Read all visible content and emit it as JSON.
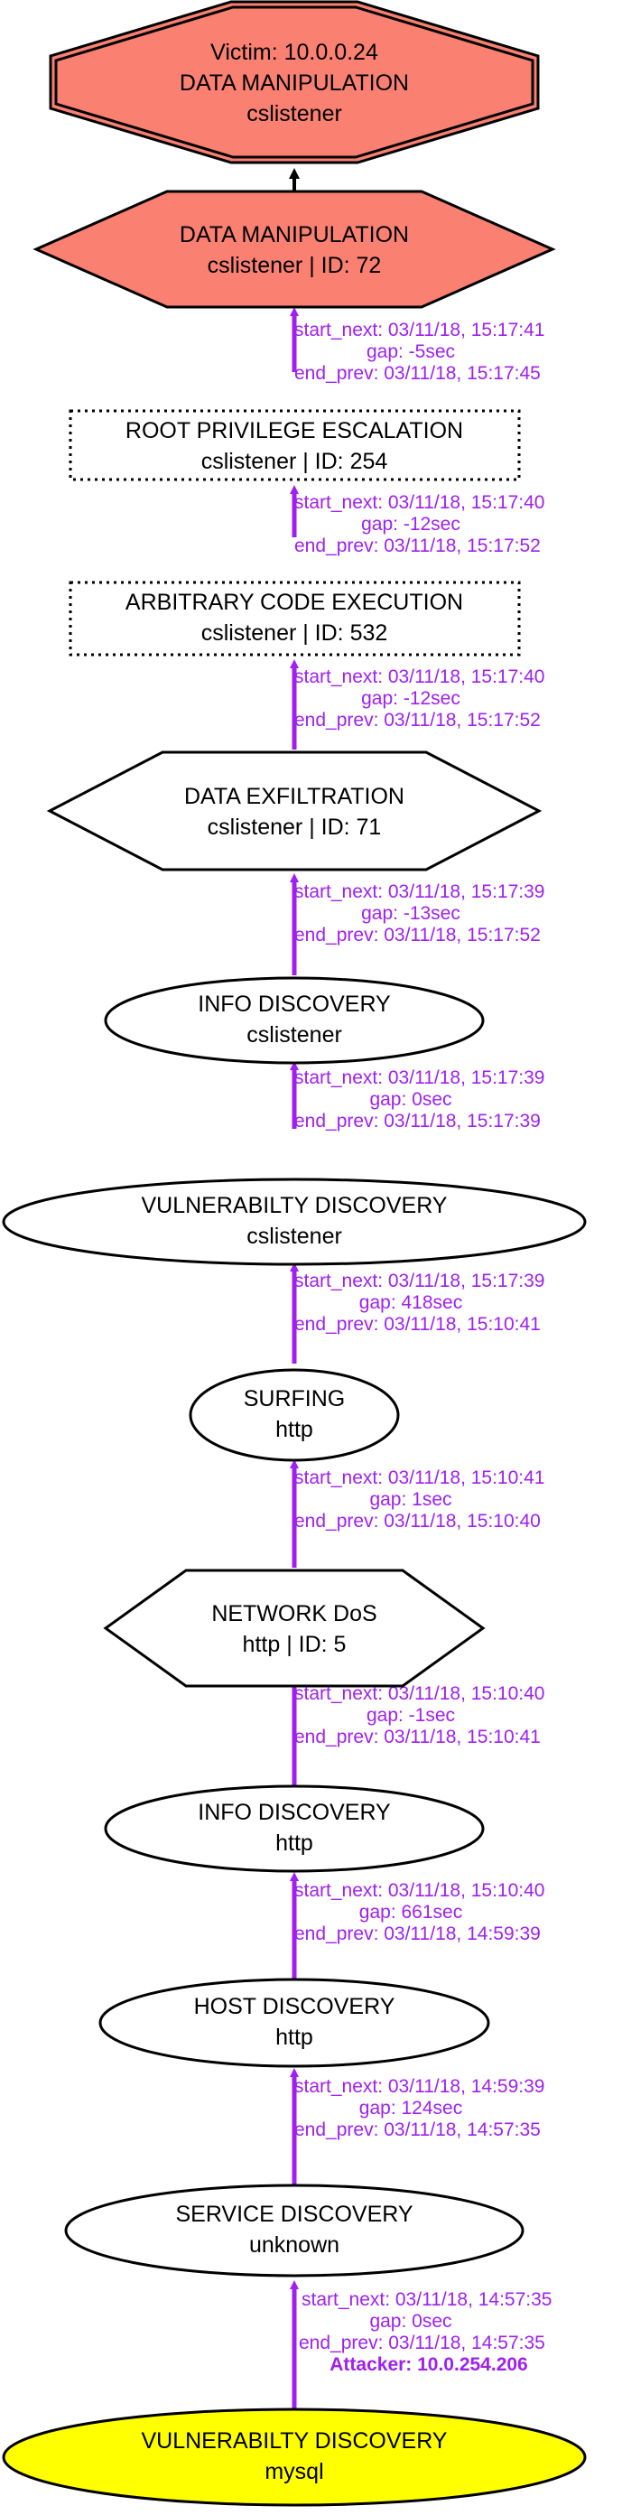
{
  "graph": {
    "colors": {
      "edge": "#a020f0",
      "victim_fill": "#fa8072",
      "attacker_fill": "#ffff00",
      "default_fill": "#ffffff",
      "outline": "#000000"
    },
    "victim": {
      "line1": "Victim: 10.0.0.24",
      "line2": "DATA MANIPULATION",
      "line3": "cslistener"
    },
    "nodes": [
      {
        "line1": "DATA MANIPULATION",
        "line2": "cslistener | ID: 72"
      },
      {
        "line1": "ROOT PRIVILEGE ESCALATION",
        "line2": "cslistener | ID: 254"
      },
      {
        "line1": "ARBITRARY CODE EXECUTION",
        "line2": "cslistener | ID: 532"
      },
      {
        "line1": "DATA EXFILTRATION",
        "line2": "cslistener | ID: 71"
      },
      {
        "line1": "INFO DISCOVERY",
        "line2": "cslistener"
      },
      {
        "line1": "VULNERABILTY DISCOVERY",
        "line2": "cslistener"
      },
      {
        "line1": "SURFING",
        "line2": "http"
      },
      {
        "line1": "NETWORK DoS",
        "line2": "http | ID: 5"
      },
      {
        "line1": "INFO DISCOVERY",
        "line2": "http"
      },
      {
        "line1": "HOST DISCOVERY",
        "line2": "http"
      },
      {
        "line1": "SERVICE DISCOVERY",
        "line2": "unknown"
      },
      {
        "line1": "VULNERABILTY DISCOVERY",
        "line2": "mysql"
      }
    ],
    "edges": [
      {
        "start_next": "start_next: 03/11/18, 15:17:41",
        "gap": "gap: -5sec",
        "end_prev": "end_prev: 03/11/18, 15:17:45"
      },
      {
        "start_next": "start_next: 03/11/18, 15:17:40",
        "gap": "gap: -12sec",
        "end_prev": "end_prev: 03/11/18, 15:17:52"
      },
      {
        "start_next": "start_next: 03/11/18, 15:17:40",
        "gap": "gap: -12sec",
        "end_prev": "end_prev: 03/11/18, 15:17:52"
      },
      {
        "start_next": "start_next: 03/11/18, 15:17:39",
        "gap": "gap: -13sec",
        "end_prev": "end_prev: 03/11/18, 15:17:52"
      },
      {
        "start_next": "start_next: 03/11/18, 15:17:39",
        "gap": "gap: 0sec",
        "end_prev": "end_prev: 03/11/18, 15:17:39"
      },
      {
        "start_next": "start_next: 03/11/18, 15:17:39",
        "gap": "gap: 418sec",
        "end_prev": "end_prev: 03/11/18, 15:10:41"
      },
      {
        "start_next": "start_next: 03/11/18, 15:10:41",
        "gap": "gap: 1sec",
        "end_prev": "end_prev: 03/11/18, 15:10:40"
      },
      {
        "start_next": "start_next: 03/11/18, 15:10:40",
        "gap": "gap: -1sec",
        "end_prev": "end_prev: 03/11/18, 15:10:41"
      },
      {
        "start_next": "start_next: 03/11/18, 15:10:40",
        "gap": "gap: 661sec",
        "end_prev": "end_prev: 03/11/18, 14:59:39"
      },
      {
        "start_next": "start_next: 03/11/18, 14:59:39",
        "gap": "gap: 124sec",
        "end_prev": "end_prev: 03/11/18, 14:57:35"
      },
      {
        "start_next": "start_next: 03/11/18, 14:57:35",
        "gap": "gap: 0sec",
        "end_prev": "end_prev: 03/11/18, 14:57:35",
        "attacker": "Attacker: 10.0.254.206"
      }
    ]
  }
}
